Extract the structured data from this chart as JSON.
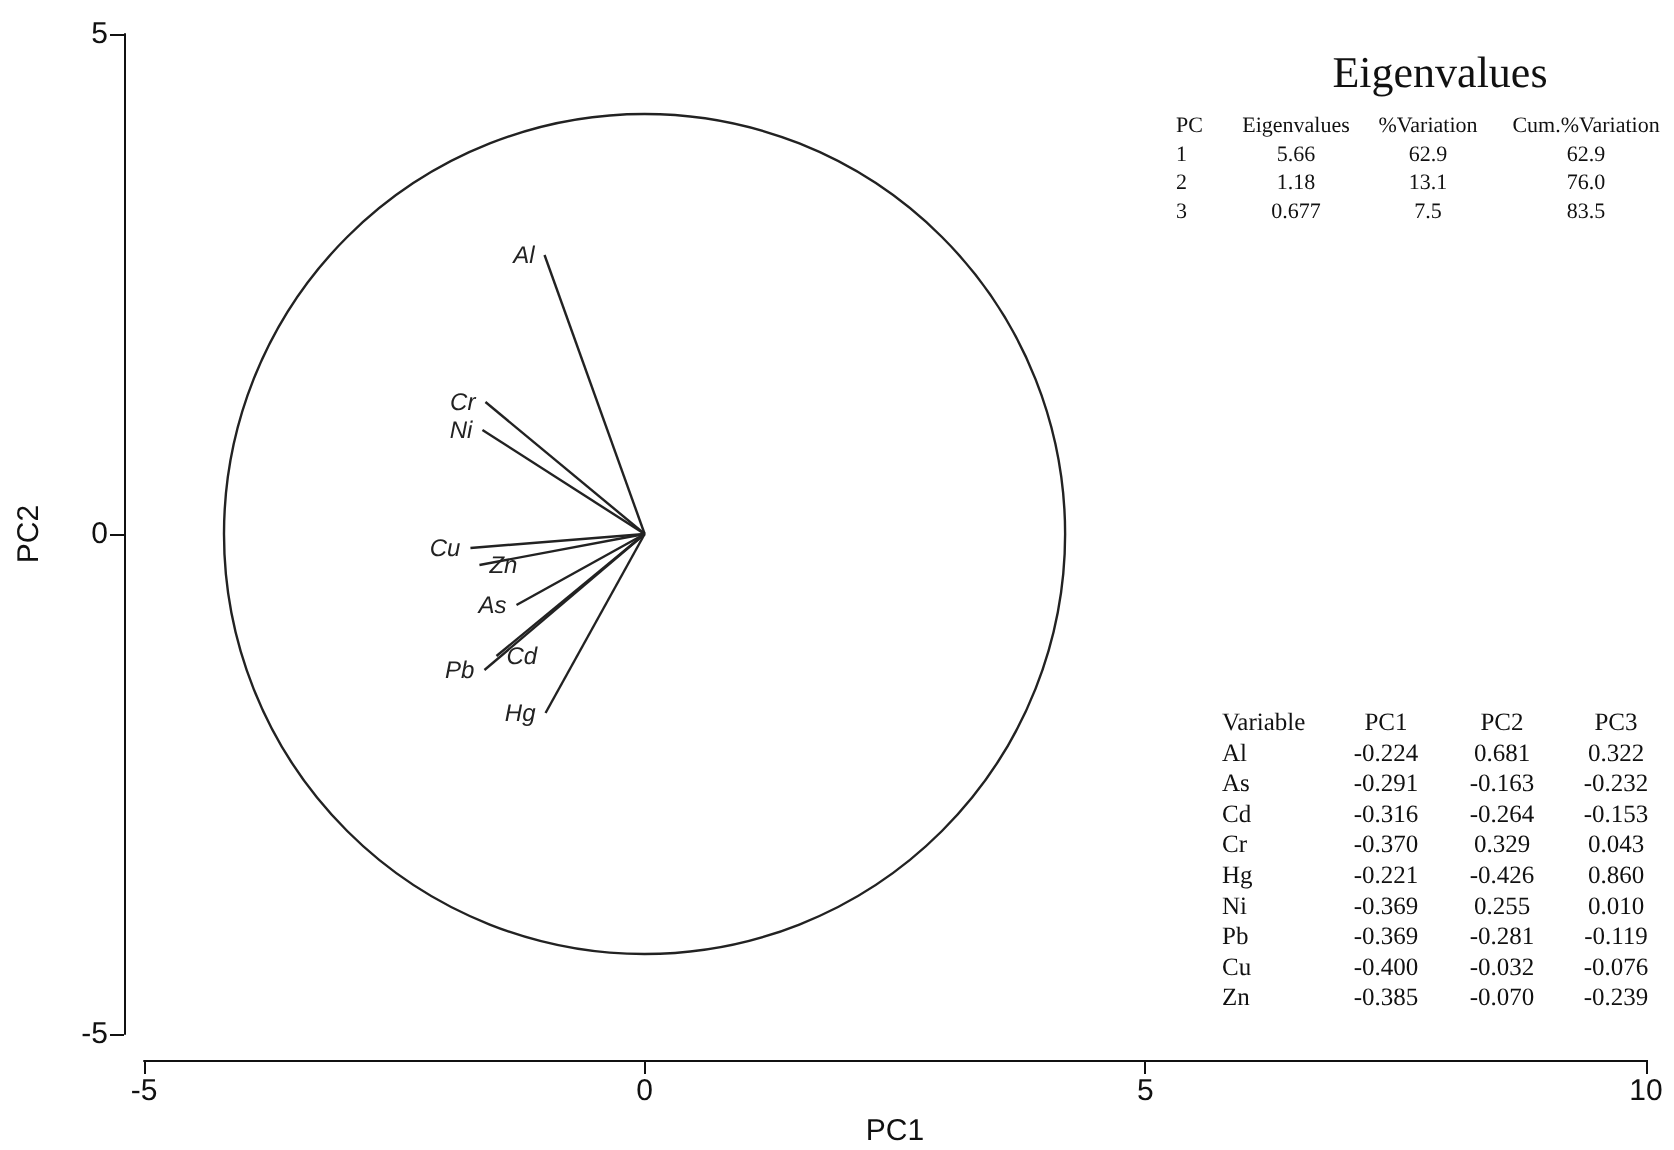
{
  "chart_data": {
    "type": "line",
    "title": "Eigenvalues",
    "xlabel": "PC1",
    "ylabel": "PC2",
    "xlim": [
      -5,
      10
    ],
    "xticks": [
      -5,
      0,
      5,
      10
    ],
    "ylim": [
      -5,
      5
    ],
    "yticks": [
      -5,
      0,
      5
    ],
    "grid": false,
    "legend": false,
    "marker": "none",
    "line_style": "solid",
    "series": [
      {
        "name": "Al",
        "color": "#222222",
        "x": [
          0,
          -1.0
        ],
        "values": [
          0,
          2.79
        ]
      },
      {
        "name": "As",
        "color": "#222222",
        "x": [
          0,
          -1.28
        ],
        "values": [
          0,
          -0.71
        ]
      },
      {
        "name": "Cd",
        "color": "#222222",
        "x": [
          0,
          -1.48
        ],
        "values": [
          0,
          -1.22
        ]
      },
      {
        "name": "Cr",
        "color": "#222222",
        "x": [
          0,
          -1.59
        ],
        "values": [
          0,
          1.32
        ]
      },
      {
        "name": "Hg",
        "color": "#222222",
        "x": [
          0,
          -0.99
        ],
        "values": [
          0,
          -1.79
        ]
      },
      {
        "name": "Ni",
        "color": "#222222",
        "x": [
          0,
          -1.62
        ],
        "values": [
          0,
          1.04
        ]
      },
      {
        "name": "Pb",
        "color": "#222222",
        "x": [
          0,
          -1.6
        ],
        "values": [
          0,
          -1.36
        ]
      },
      {
        "name": "Cu",
        "color": "#222222",
        "x": [
          0,
          -1.74
        ],
        "values": [
          0,
          -0.14
        ]
      },
      {
        "name": "Zn",
        "color": "#222222",
        "x": [
          0,
          -1.65
        ],
        "values": [
          0,
          -0.31
        ]
      }
    ],
    "annotations": [
      "PC\tEigenvalues\t%Variation\tCum.%Variation",
      "1\t5.66\t62.9\t62.9",
      "2\t1.18\t13.1\t76.0",
      "3\t0.677\t7.5\t83.5",
      "Variable\tPC1\tPC2\tPC3",
      "Al\t-0.224\t0.681\t0.322",
      "As\t-0.291\t-0.163\t-0.232",
      "Cd\t-0.316\t-0.264\t-0.153",
      "Cr\t-0.370\t0.329\t0.043",
      "Hg\t-0.221\t-0.426\t0.860",
      "Ni\t-0.369\t0.255\t0.010",
      "Pb\t-0.369\t-0.281\t-0.119",
      "Cu\t-0.400\t-0.032\t-0.076",
      "Zn\t-0.385\t-0.070\t-0.239"
    ]
  }
}
